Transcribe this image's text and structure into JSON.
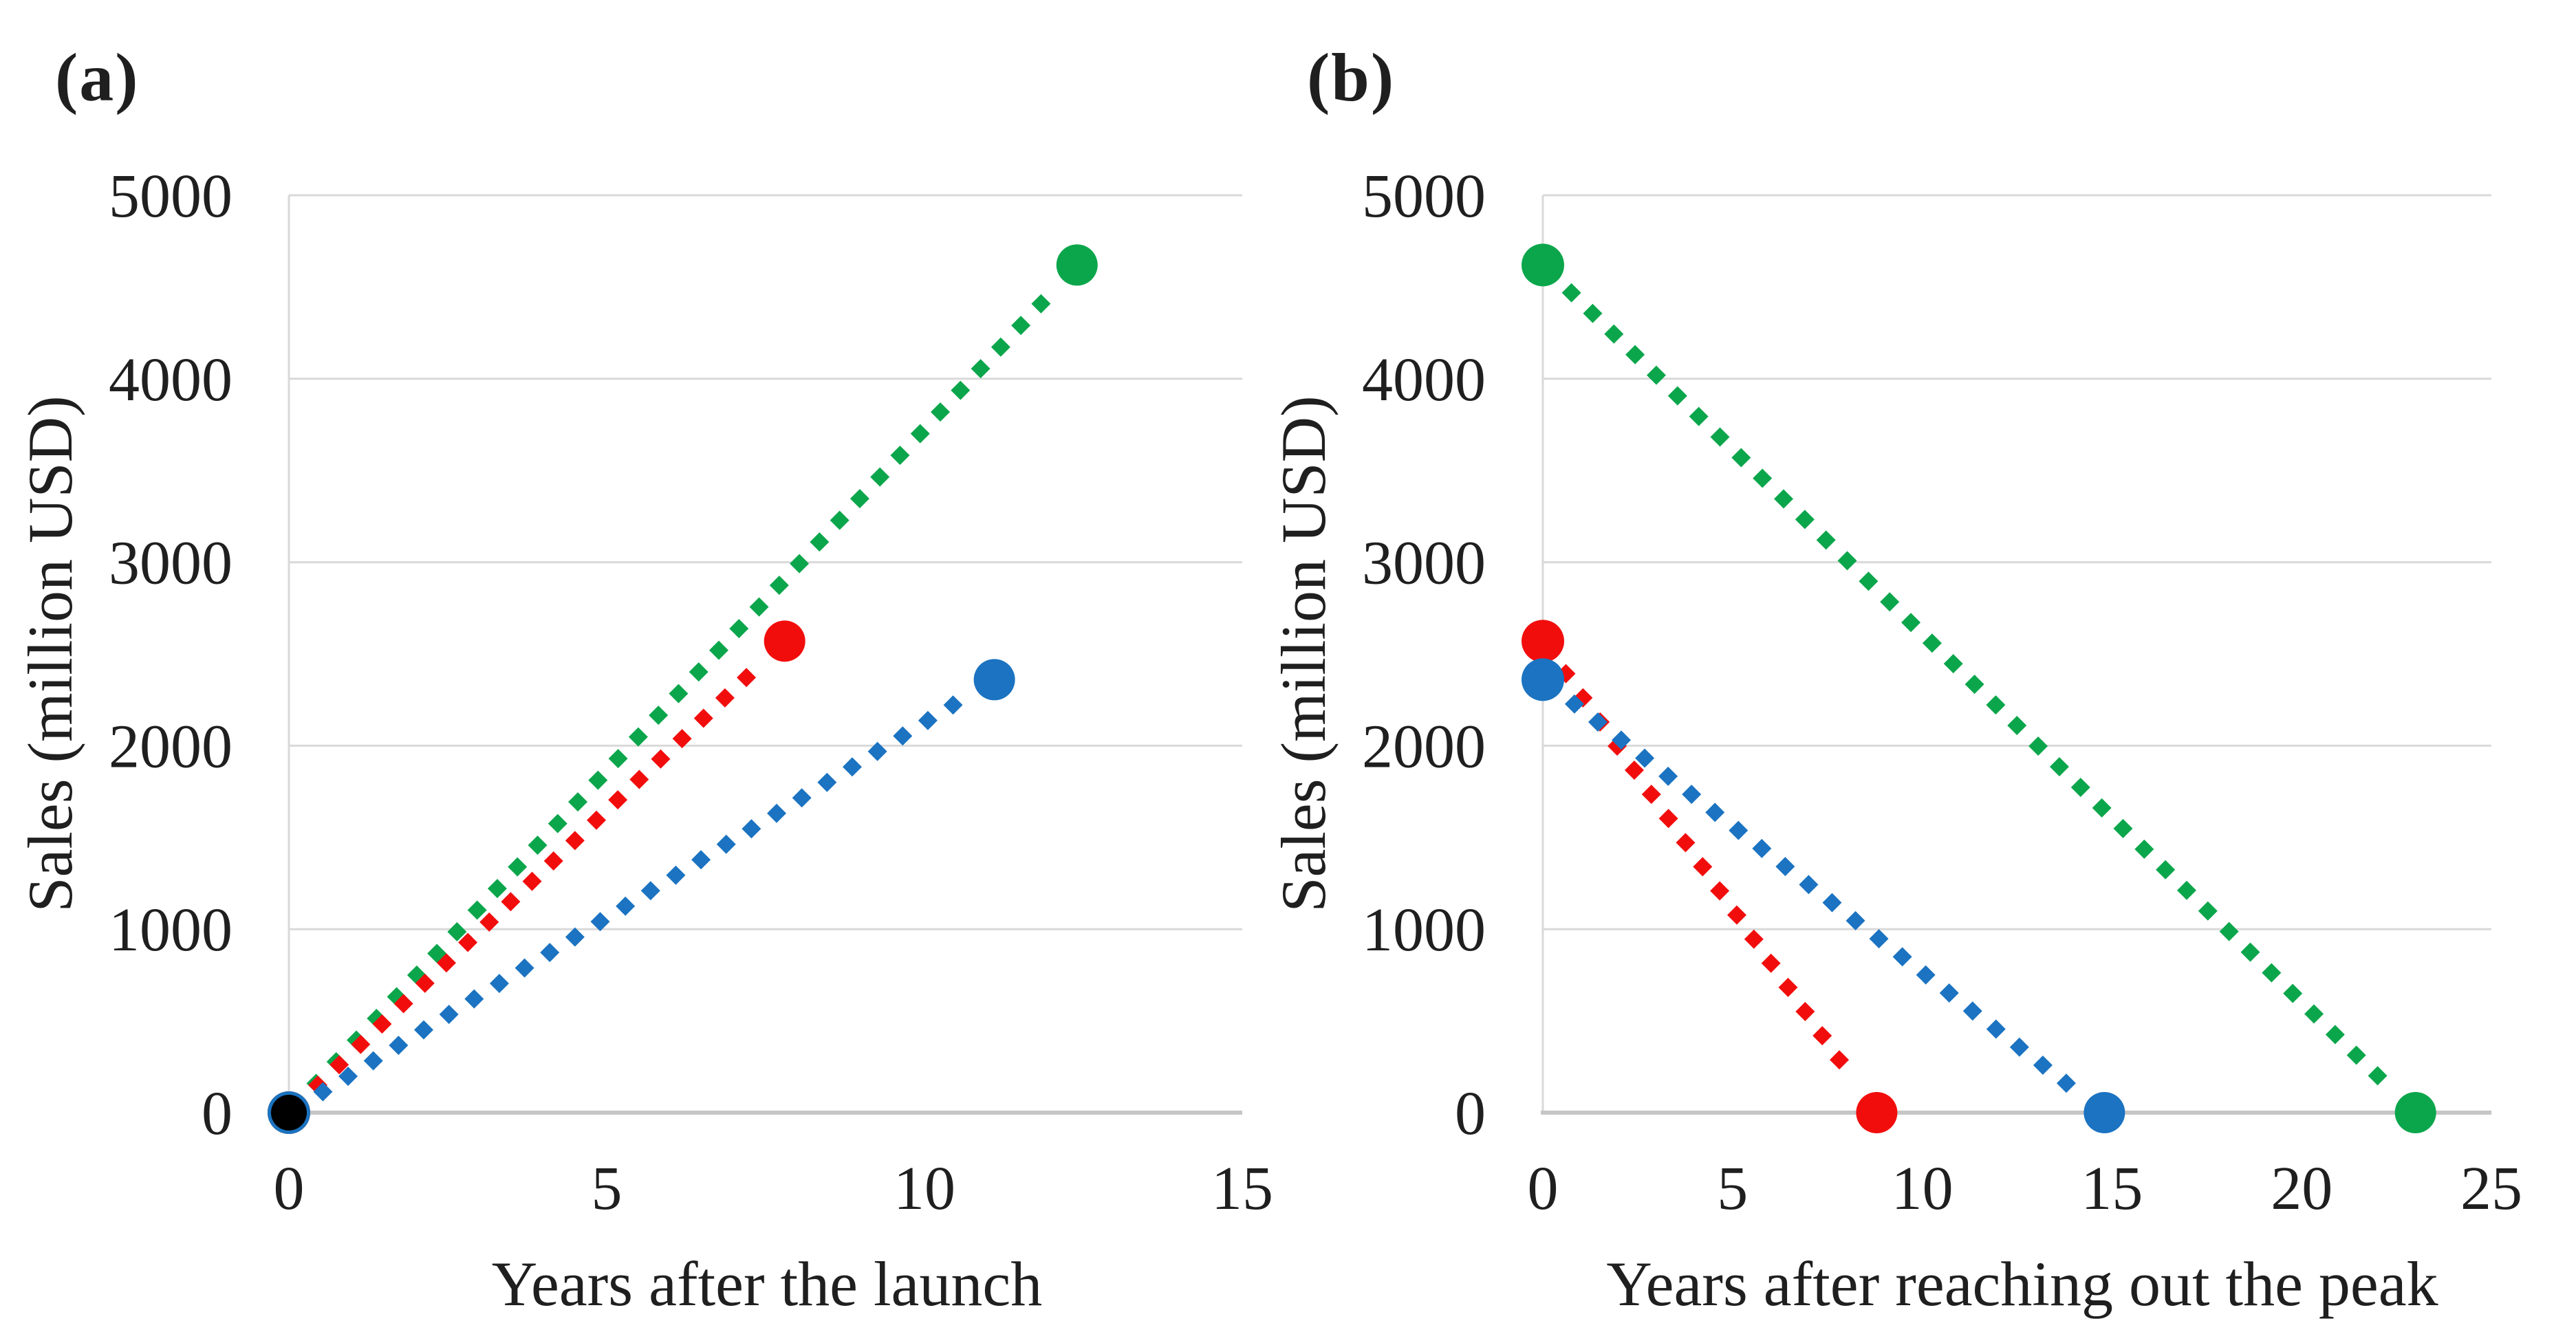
{
  "figure": {
    "background_color": "#ffffff",
    "text_color": "#1f1f1f",
    "gridline_color": "#d9d9d9",
    "axis_line_color": "#c6c6c6",
    "panel_a_label": "(a)",
    "panel_b_label": "(b)"
  },
  "chart_data": [
    {
      "type": "line",
      "panel_label": "(a)",
      "xlabel": "Years after the launch",
      "ylabel": "Sales (million USD)",
      "xlim": [
        0,
        15
      ],
      "ylim": [
        0,
        5000
      ],
      "xticks": [
        0,
        5,
        10,
        15
      ],
      "yticks": [
        0,
        1000,
        2000,
        3000,
        4000,
        5000
      ],
      "grid": "horizontal",
      "legend": "none",
      "line_style": "thick-dotted-diamond-dashes",
      "series": [
        {
          "name": "green-series",
          "color": "#0ba64b",
          "points": [
            [
              0,
              0
            ],
            [
              12.4,
              4620
            ]
          ],
          "start_marker": "circle",
          "end_marker": "circle"
        },
        {
          "name": "red-series",
          "color": "#f20d0d",
          "points": [
            [
              0,
              0
            ],
            [
              7.8,
              2570
            ]
          ],
          "start_marker": "circle",
          "end_marker": "circle"
        },
        {
          "name": "blue-series",
          "color": "#1b73c1",
          "points": [
            [
              0,
              0
            ],
            [
              11.1,
              2360
            ]
          ],
          "start_marker": "circle",
          "end_marker": "circle"
        }
      ],
      "extra_markers": [
        {
          "name": "origin-dot",
          "shape": "circle",
          "color": "#000000",
          "at": [
            0,
            0
          ]
        }
      ]
    },
    {
      "type": "line",
      "panel_label": "(b)",
      "xlabel": "Years after reaching out the peak",
      "ylabel": "Sales (million USD)",
      "xlim": [
        0,
        25
      ],
      "ylim": [
        0,
        5000
      ],
      "xticks": [
        0,
        5,
        10,
        15,
        20,
        25
      ],
      "yticks": [
        0,
        1000,
        2000,
        3000,
        4000,
        5000
      ],
      "grid": "horizontal",
      "legend": "none",
      "line_style": "thick-dotted-diamond-dashes",
      "series": [
        {
          "name": "green-series",
          "color": "#0ba64b",
          "points": [
            [
              0,
              4620
            ],
            [
              23,
              0
            ]
          ],
          "start_marker": "circle",
          "end_marker": "circle"
        },
        {
          "name": "red-series",
          "color": "#f20d0d",
          "points": [
            [
              0,
              2570
            ],
            [
              8.8,
              0
            ]
          ],
          "start_marker": "circle",
          "end_marker": "circle"
        },
        {
          "name": "blue-series",
          "color": "#1b73c1",
          "points": [
            [
              0,
              2360
            ],
            [
              14.8,
              0
            ]
          ],
          "start_marker": "circle",
          "end_marker": "circle"
        }
      ],
      "extra_markers": []
    }
  ]
}
